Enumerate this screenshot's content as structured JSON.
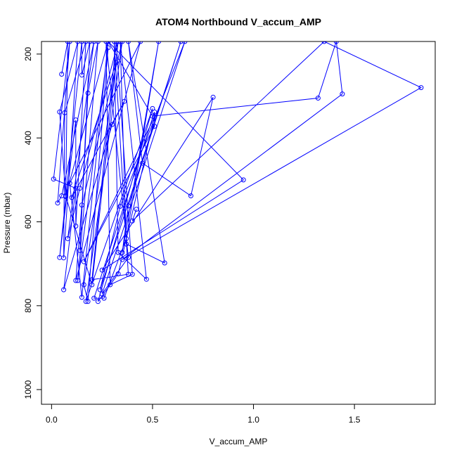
{
  "chart_data": {
    "type": "line",
    "title": "ATOM4 Northbound V_accum_AMP",
    "xlabel": "V_accum_AMP",
    "ylabel": "Pressure (mbar)",
    "xlim": [
      -0.05,
      1.9
    ],
    "ylim": [
      1035,
      170
    ],
    "y_reversed": true,
    "x_ticks": [
      0.0,
      0.5,
      1.0,
      1.5
    ],
    "x_tick_labels": [
      "0.0",
      "0.5",
      "1.0",
      "1.5"
    ],
    "y_ticks": [
      200,
      400,
      600,
      800,
      1000
    ],
    "y_tick_labels": [
      "200",
      "400",
      "600",
      "800",
      "1000"
    ],
    "grid": false,
    "series": [
      {
        "style": "both",
        "marker": "open-circle",
        "color": "#0000ff",
        "points": [
          [
            0.05,
            248
          ],
          [
            0.08,
            170
          ],
          [
            0.07,
            540
          ],
          [
            0.04,
            338
          ],
          [
            0.13,
            170
          ],
          [
            0.06,
            686
          ],
          [
            0.065,
            340
          ],
          [
            0.17,
            170
          ],
          [
            0.12,
            610
          ],
          [
            0.12,
            357
          ],
          [
            0.04,
            685
          ],
          [
            0.15,
            170
          ],
          [
            0.15,
            250
          ],
          [
            0.19,
            170
          ],
          [
            0.14,
            668
          ],
          [
            0.18,
            293
          ],
          [
            0.23,
            170
          ],
          [
            0.13,
            740
          ],
          [
            0.28,
            185
          ],
          [
            0.18,
            790
          ],
          [
            0.16,
            750
          ],
          [
            0.32,
            220
          ],
          [
            0.1,
            542
          ],
          [
            0.36,
            313
          ],
          [
            0.3,
            368
          ],
          [
            0.06,
            762
          ],
          [
            0.12,
            520
          ],
          [
            0.01,
            498
          ],
          [
            0.09,
            170
          ],
          [
            0.03,
            555
          ],
          [
            0.05,
            538
          ],
          [
            0.21,
            170
          ],
          [
            0.08,
            640
          ],
          [
            0.14,
            520
          ],
          [
            0.33,
            170
          ],
          [
            0.2,
            750
          ],
          [
            0.07,
            538
          ],
          [
            0.28,
            170
          ],
          [
            0.15,
            780
          ],
          [
            0.09,
            508
          ],
          [
            0.44,
            170
          ],
          [
            0.12,
            740
          ],
          [
            0.15,
            560
          ],
          [
            0.35,
            170
          ],
          [
            0.17,
            790
          ],
          [
            0.5,
            330
          ],
          [
            0.23,
            790
          ],
          [
            0.33,
            724
          ],
          [
            0.51,
            350
          ],
          [
            0.16,
            695
          ],
          [
            0.51,
            372
          ],
          [
            0.51,
            338
          ],
          [
            0.21,
            782
          ],
          [
            0.26,
            782
          ],
          [
            0.37,
            640
          ],
          [
            0.53,
            170
          ],
          [
            0.35,
            673
          ],
          [
            0.38,
            562
          ],
          [
            0.64,
            170
          ],
          [
            0.24,
            762
          ],
          [
            0.34,
            563
          ],
          [
            0.66,
            170
          ],
          [
            0.25,
            772
          ],
          [
            0.38,
            685
          ],
          [
            0.27,
            170
          ],
          [
            0.29,
            750
          ],
          [
            0.4,
            725
          ],
          [
            0.32,
            170
          ],
          [
            0.2,
            738
          ],
          [
            0.38,
            725
          ],
          [
            0.31,
            170
          ],
          [
            0.33,
            673
          ],
          [
            0.47,
            737
          ],
          [
            0.34,
            170
          ],
          [
            0.37,
            653
          ],
          [
            0.56,
            698
          ],
          [
            0.38,
            170
          ],
          [
            0.45,
            460
          ],
          [
            0.69,
            538
          ],
          [
            0.8,
            303
          ],
          [
            0.25,
            715
          ],
          [
            0.95,
            500
          ],
          [
            0.28,
            170
          ],
          [
            0.5,
            348
          ],
          [
            1.32,
            305
          ],
          [
            1.41,
            170
          ],
          [
            1.44,
            295
          ],
          [
            0.35,
            690
          ],
          [
            1.83,
            280
          ],
          [
            1.35,
            170
          ],
          [
            0.4,
            598
          ],
          [
            0.42,
            570
          ]
        ]
      }
    ]
  }
}
